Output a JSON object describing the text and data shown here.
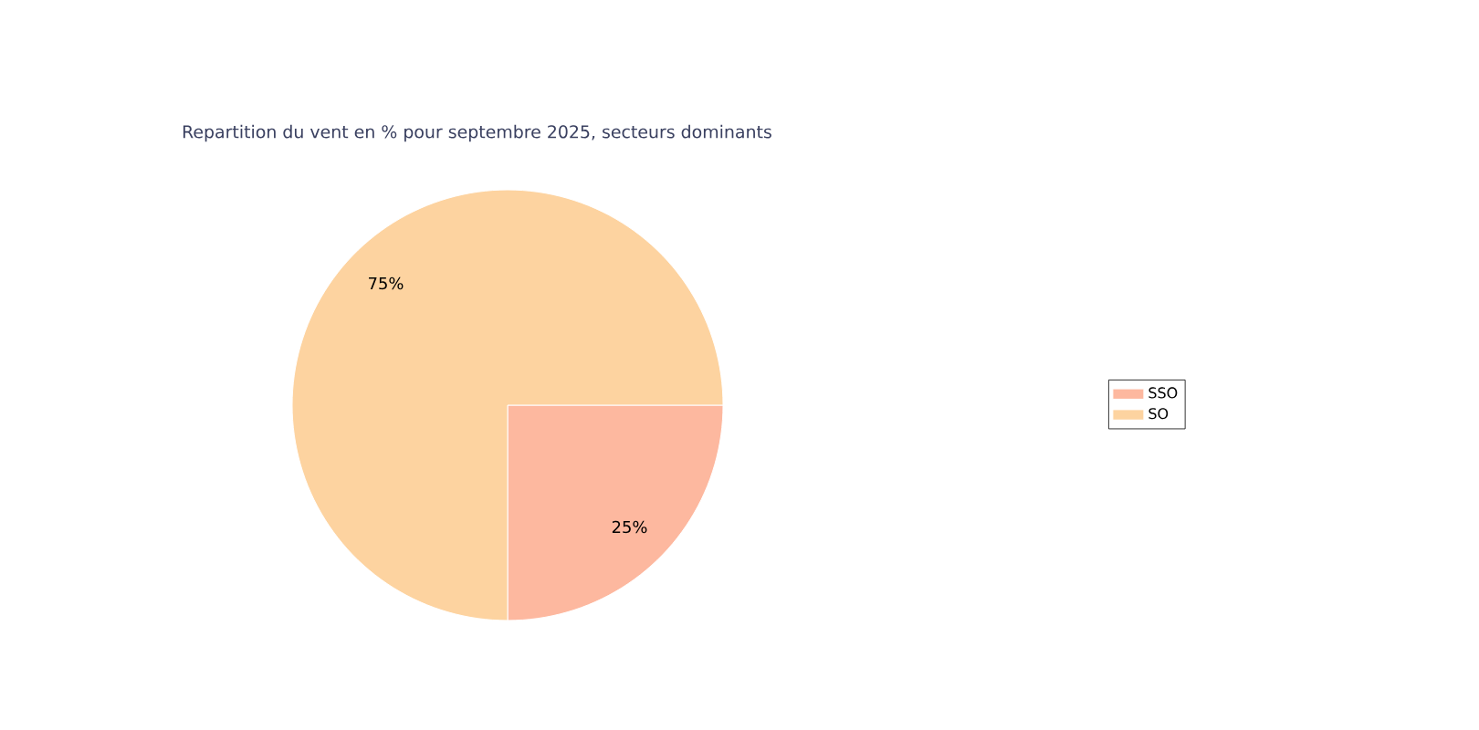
{
  "chart_data": {
    "type": "pie",
    "title": "Repartition du vent en % pour septembre 2025, secteurs dominants",
    "categories": [
      "SSO",
      "SO"
    ],
    "values": [
      25,
      75
    ],
    "colors": [
      "#fdb89f",
      "#fdd3a0"
    ],
    "value_labels": [
      "25%",
      "75%"
    ],
    "legend": "right"
  }
}
